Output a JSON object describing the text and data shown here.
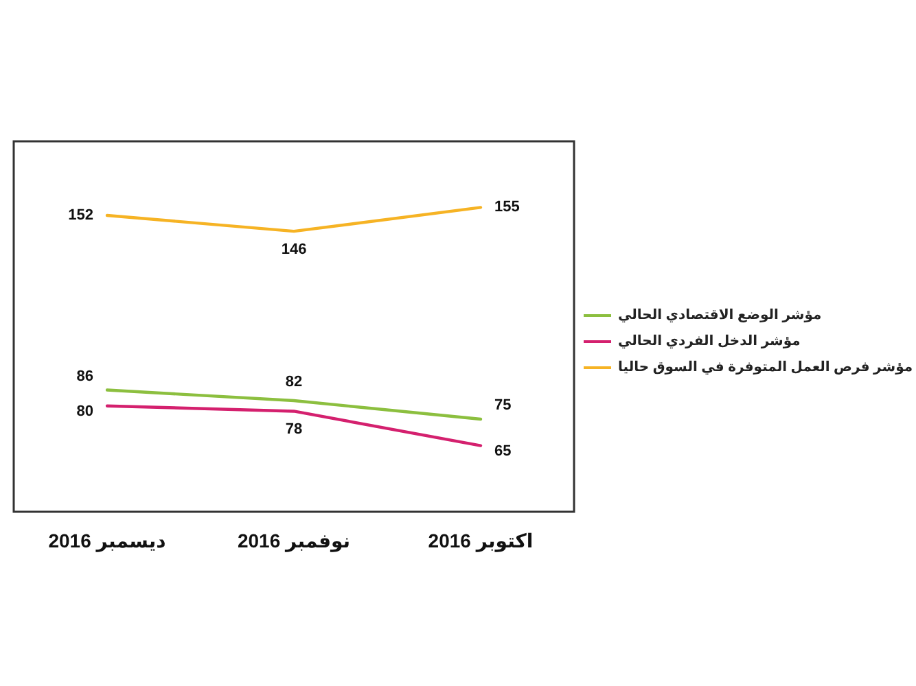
{
  "chart_data": {
    "type": "line",
    "categories": [
      "ديسمبر 2016",
      "نوفمبر 2016",
      "اكتوبر 2016"
    ],
    "series": [
      {
        "name": "مؤشر الوضع الاقتصادي الحالي",
        "color": "#8cbf3f",
        "values": [
          86,
          82,
          75
        ]
      },
      {
        "name": "مؤشر الدخل الفردي الحالي",
        "color": "#d4206e",
        "values": [
          80,
          78,
          65
        ]
      },
      {
        "name": "مؤشر فرص العمل المتوفرة في السوق حاليا",
        "color": "#f6b324",
        "values": [
          152,
          146,
          155
        ]
      }
    ],
    "ylim": [
      40,
      180
    ],
    "data_labels": true,
    "legend": "right",
    "grid": false,
    "marker": "none",
    "line_style": "solid"
  }
}
